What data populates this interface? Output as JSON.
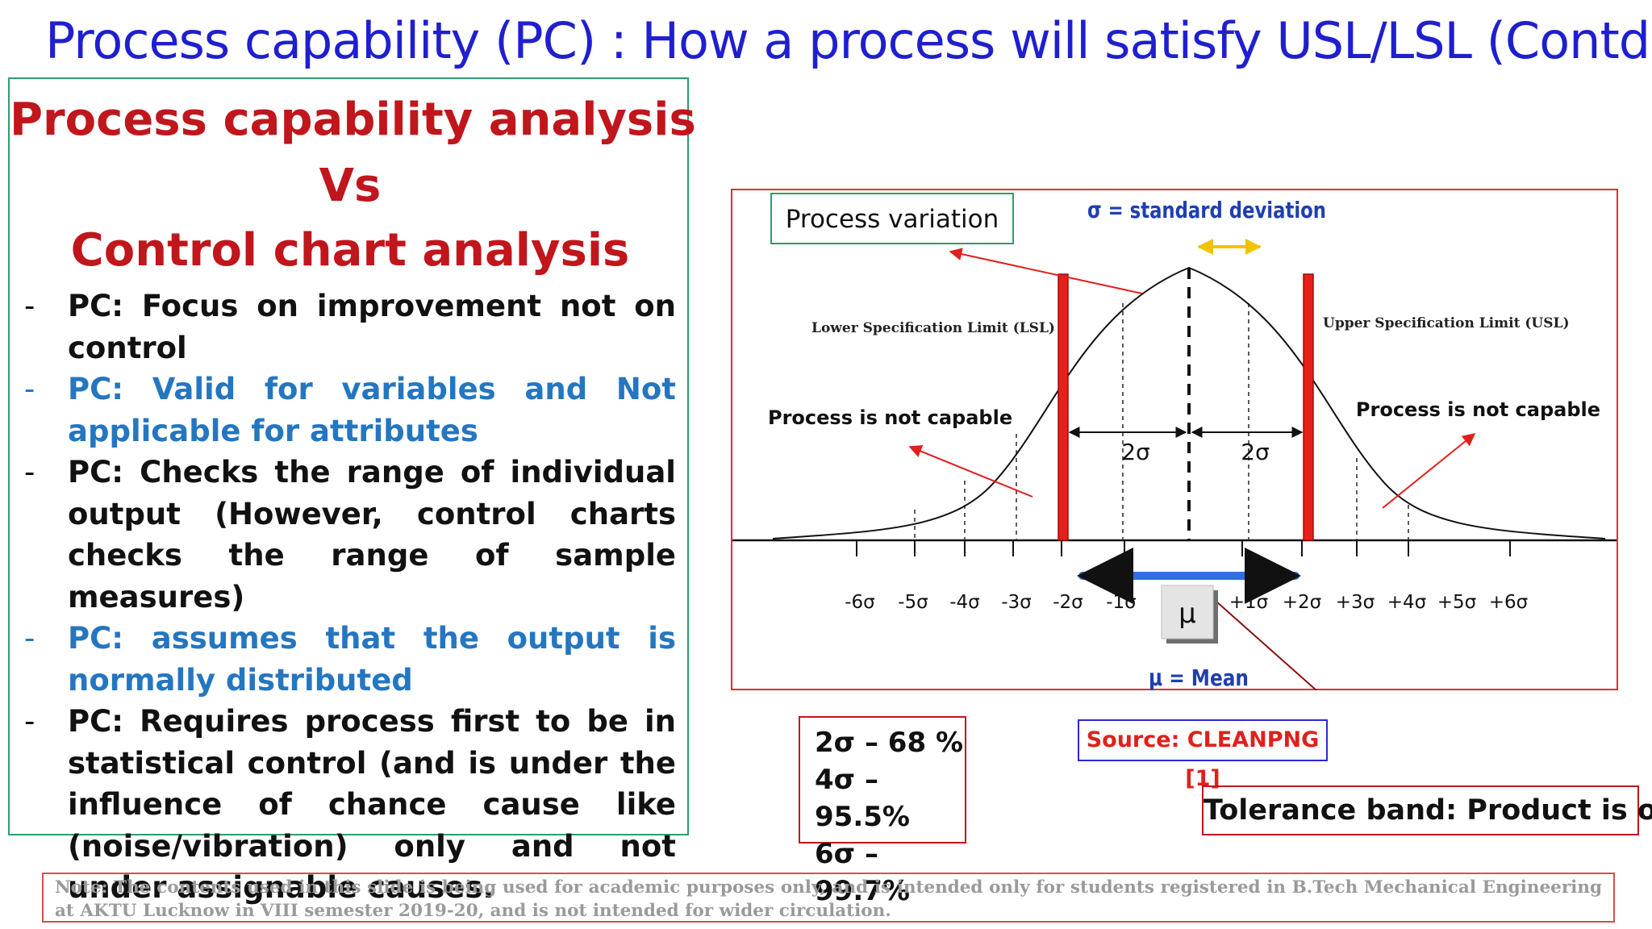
{
  "title": "Process capability (PC) : How a process will satisfy USL/LSL (Contd.)",
  "left_panel": {
    "heading_line1": "Process capability analysis",
    "heading_line2": "Vs",
    "heading_line3": "Control chart analysis",
    "bullets": [
      {
        "dash": "-",
        "text": "PC: Focus on improvement not on control",
        "color": "black"
      },
      {
        "dash": "-",
        "text": "PC: Valid for variables and Not applicable for attributes",
        "color": "blue"
      },
      {
        "dash": "-",
        "text": "PC: Checks the range of individual output (However, control charts checks the range of sample measures)",
        "color": "black"
      },
      {
        "dash": "-",
        "text": "PC: assumes that the output is normally distributed",
        "color": "blue"
      },
      {
        "dash": "-",
        "text": "PC: Requires process first to be in statistical control (and is under the influence of chance cause like (noise/vibration) only and not under assignable causes.",
        "color": "black"
      }
    ]
  },
  "diagram": {
    "process_variation_label": "Process variation",
    "sigma_legend": "σ = standard deviation",
    "lsl_label": "Lower Specification Limit (LSL)",
    "usl_label": "Upper Specification Limit (USL)",
    "not_capable_left": "Process is not capable",
    "not_capable_right": "Process is not capable",
    "two_sigma_left": "2σ",
    "two_sigma_right": "2σ",
    "mu_box": "μ",
    "mean_legend": "μ = Mean",
    "axis_ticks": [
      "-6σ",
      "-5σ",
      "-4σ",
      "-3σ",
      "-2σ",
      "-1σ",
      "+1σ",
      "+2σ",
      "+3σ",
      "+4σ",
      "+5σ",
      "+6σ"
    ]
  },
  "stats": [
    "2σ – 68 %",
    "4σ – 95.5%",
    "6σ – 99.7%"
  ],
  "source": "Source: CLEANPNG [1]",
  "tolerance": "Tolerance band: Product is okay",
  "note": "Note: The contents used in this slide is being used for academic purposes only, and is intended only for students registered in B.Tech Mechanical Engineering at AKTU Lucknow in VIII semester 2019-20, and is not intended for wider circulation.",
  "colors": {
    "title_blue": "#1f1fd0",
    "heading_red": "#c0161c",
    "bullet_blue": "#2576c0",
    "limit_bar_red": "#e8201a",
    "band_blue": "#2f6fe0",
    "sigma_gold": "#f2c200"
  }
}
